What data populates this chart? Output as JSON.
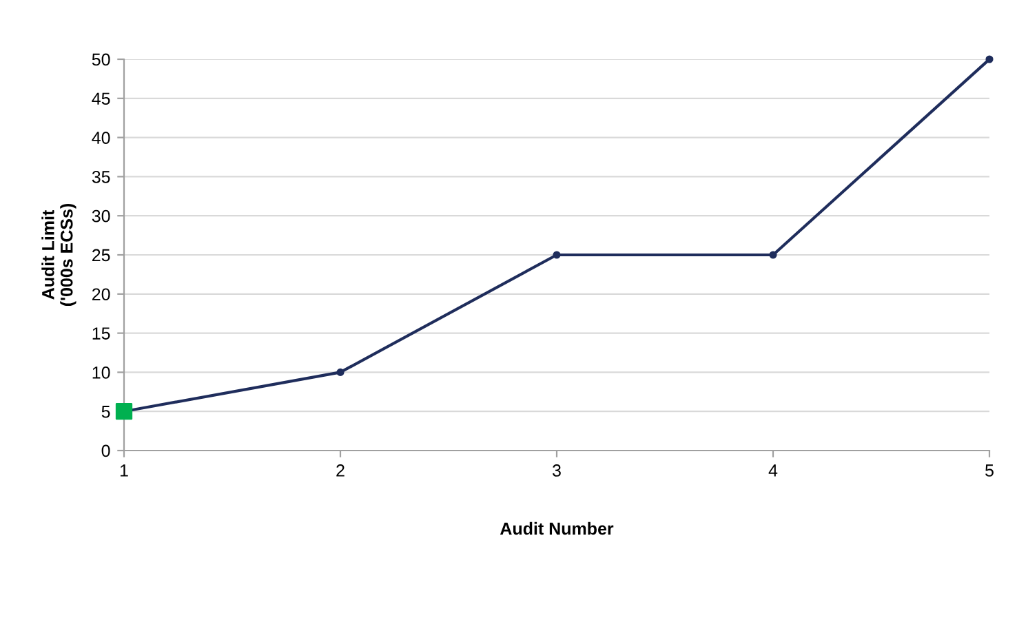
{
  "chart_data": {
    "type": "line",
    "xlabel": "Audit Number",
    "ylabel": "Audit Limit\n('000s ECSs)",
    "x": [
      1,
      2,
      3,
      4,
      5
    ],
    "series": [
      {
        "color": "#1f2d5c",
        "values": [
          5,
          10,
          25,
          25,
          50
        ],
        "marker": "circle"
      },
      {
        "type": "scatter",
        "color": "#00b050",
        "x": [
          1
        ],
        "values": [
          5
        ],
        "marker": "square"
      }
    ],
    "xlim": [
      1,
      5
    ],
    "xticks": [
      1,
      2,
      3,
      4,
      5
    ],
    "ylim": [
      0,
      50
    ],
    "yticks": [
      0,
      5,
      10,
      15,
      20,
      25,
      30,
      35,
      40,
      45,
      50
    ],
    "grid": "y",
    "legend": false
  }
}
